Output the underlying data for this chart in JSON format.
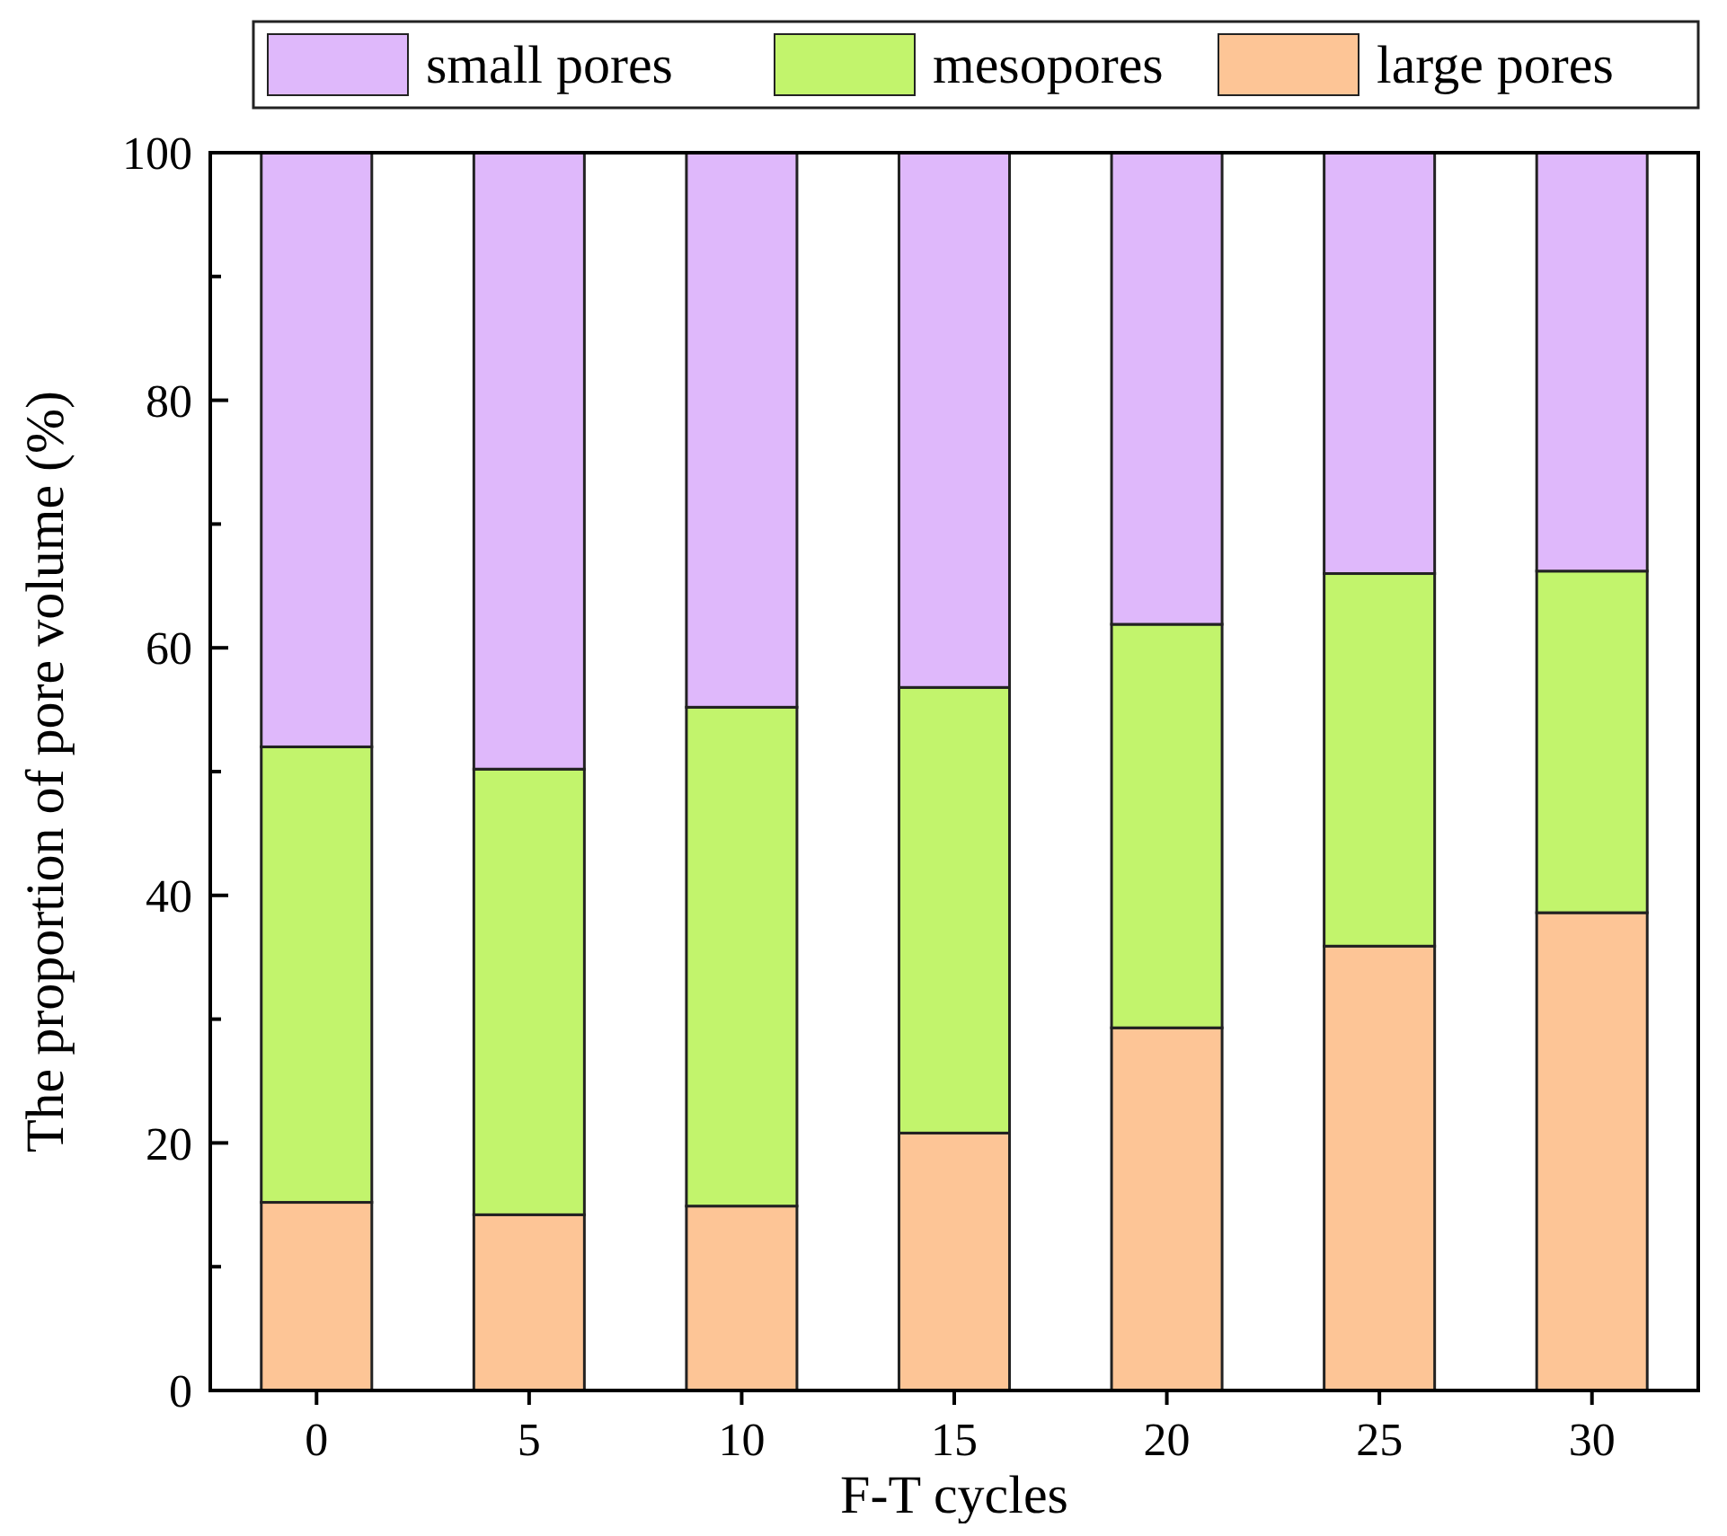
{
  "chart_data": {
    "type": "bar",
    "stacked": true,
    "xlabel": "F-T cycles",
    "ylabel": "The proportion of pore volume (%)",
    "categories": [
      "0",
      "5",
      "10",
      "15",
      "20",
      "25",
      "30"
    ],
    "series": [
      {
        "name": "large pores",
        "color": "#fdc596",
        "values": [
          15.2,
          14.2,
          14.9,
          20.8,
          29.3,
          35.9,
          38.6
        ]
      },
      {
        "name": "mesopores",
        "color": "#c2f46c",
        "values": [
          36.8,
          36.0,
          40.3,
          36.0,
          32.6,
          30.1,
          27.6
        ]
      },
      {
        "name": "small pores",
        "color": "#dfb8fb",
        "values": [
          48.0,
          49.8,
          44.8,
          43.2,
          38.1,
          34.0,
          33.8
        ]
      }
    ],
    "ylim": [
      0,
      100
    ],
    "yticks": [
      0,
      {
        "value": 10,
        "label": null
      },
      20,
      {
        "value": 30,
        "label": null
      },
      40,
      {
        "value": 50,
        "label": null
      },
      60,
      {
        "value": 70,
        "label": null
      },
      80,
      {
        "value": 90,
        "label": null
      },
      100
    ],
    "grid": false,
    "legend": "top"
  }
}
